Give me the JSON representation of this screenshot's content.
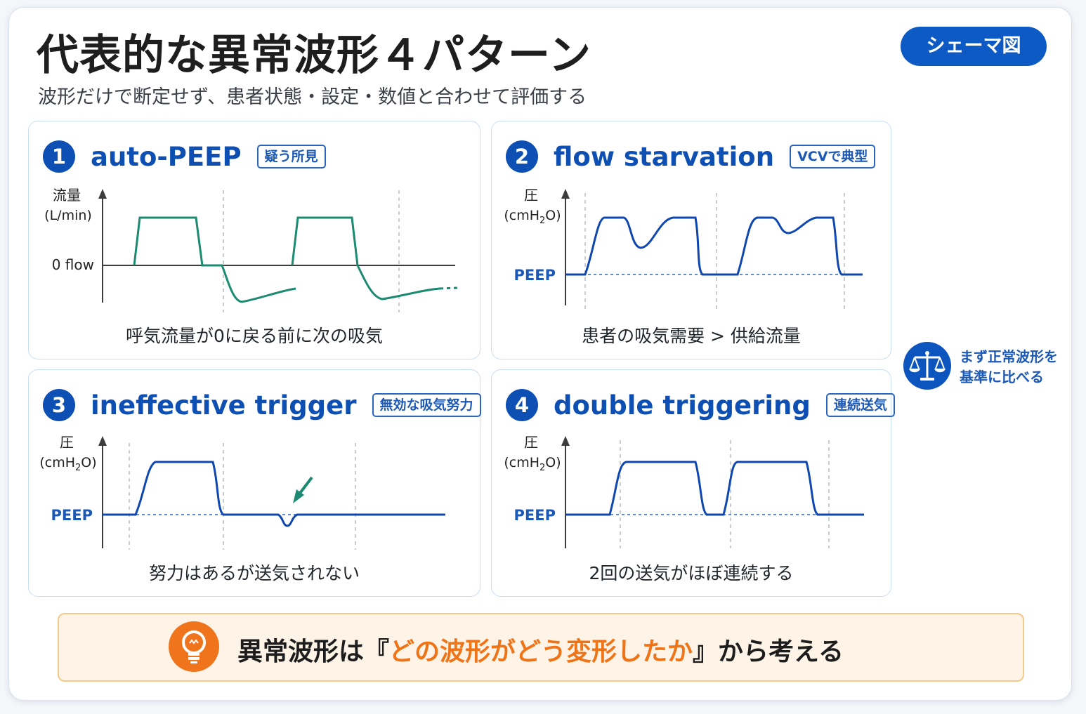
{
  "title": "代表的な異常波形４パターン",
  "subtitle": "波形だけで断定せず、患者状態・設定・数値と合わせて評価する",
  "schema_badge": "シェーマ図",
  "panels": [
    {
      "number": "1",
      "title": "auto-PEEP",
      "tag": "疑う所見",
      "y_label_main": "流量",
      "y_label_unit": "(L/min)",
      "baseline_label": "0 flow",
      "caption": "呼気流量が0に戻る前に次の吸気"
    },
    {
      "number": "2",
      "title": "flow starvation",
      "tag": "VCVで典型",
      "y_label_main": "圧",
      "y_label_unit_pre": "(cmH",
      "y_label_unit_sub": "2",
      "y_label_unit_post": "O)",
      "baseline_label": "PEEP",
      "caption": "患者の吸気需要 > 供給流量"
    },
    {
      "number": "3",
      "title": "ineffective trigger",
      "tag": "無効な吸気努力",
      "y_label_main": "圧",
      "y_label_unit_pre": "(cmH",
      "y_label_unit_sub": "2",
      "y_label_unit_post": "O)",
      "baseline_label": "PEEP",
      "caption": "努力はあるが送気されない"
    },
    {
      "number": "4",
      "title": "double triggering",
      "tag": "連続送気",
      "y_label_main": "圧",
      "y_label_unit_pre": "(cmH",
      "y_label_unit_sub": "2",
      "y_label_unit_post": "O)",
      "baseline_label": "PEEP",
      "caption": "2回の送気がほぼ連続する"
    }
  ],
  "side_note": {
    "icon": "scale-icon",
    "line1": "まず正常波形を",
    "line2": "基準に比べる"
  },
  "banner": {
    "icon": "lightbulb-icon",
    "prefix": "異常波形は『",
    "highlight": "どの波形がどう変形したか",
    "suffix": "』から考える"
  },
  "colors": {
    "primary_blue": "#0d4fb3",
    "flow_green": "#1b8a70",
    "accent_orange": "#ef7418"
  }
}
